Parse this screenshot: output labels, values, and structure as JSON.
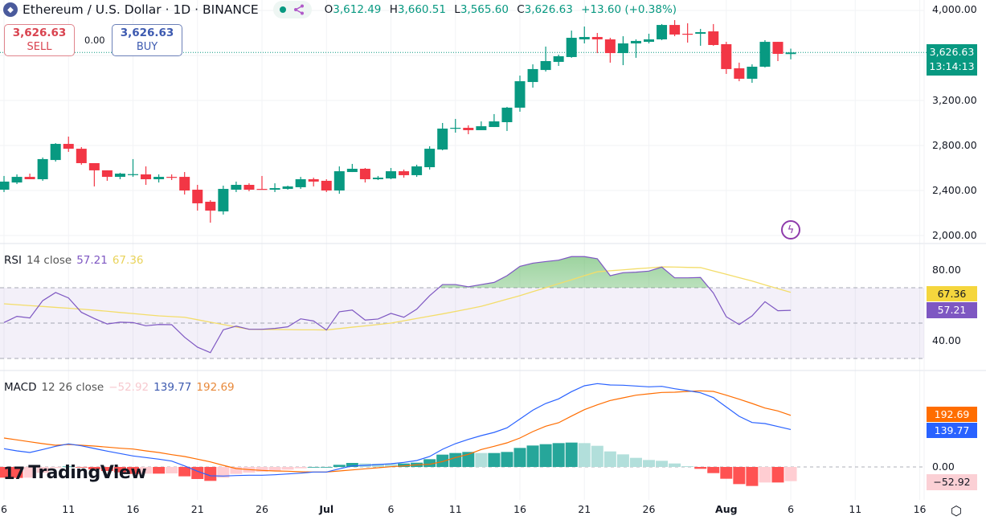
{
  "header": {
    "title": "Ethereum / U.S. Dollar · 1D · BINANCE",
    "logo_icon": "ethereum-icon",
    "status_icon": "market-open-dot",
    "share_icon": "share-icon",
    "ohlc": {
      "o_label": "O",
      "o": "3,612.49",
      "h_label": "H",
      "h": "3,660.51",
      "l_label": "L",
      "l": "3,565.60",
      "c_label": "C",
      "c": "3,626.63",
      "change": "+13.60 (+0.38%)"
    }
  },
  "trade": {
    "sell_price": "3,626.63",
    "sell_label": "SELL",
    "spread": "0.00",
    "buy_price": "3,626.63",
    "buy_label": "BUY"
  },
  "price_axis": {
    "ticks": [
      "4,000.00",
      "3,200.00",
      "2,800.00",
      "2,400.00",
      "2,000.00"
    ],
    "last_price": "3,626.63",
    "countdown": "13:14:13"
  },
  "rsi": {
    "title": "RSI",
    "params": "14 close",
    "value": "57.21",
    "ma_value": "67.36",
    "axis": [
      "80.00",
      "40.00"
    ]
  },
  "macd": {
    "title": "MACD",
    "params": "12 26 close",
    "hist_value": "−52.92",
    "macd_value": "139.77",
    "signal_value": "192.69",
    "axis_zero": "0.00"
  },
  "time_axis": {
    "ticks": [
      {
        "label": "6",
        "date": "Jun 6"
      },
      {
        "label": "11",
        "date": "Jun 11"
      },
      {
        "label": "16",
        "date": "Jun 16"
      },
      {
        "label": "21",
        "date": "Jun 21"
      },
      {
        "label": "26",
        "date": "Jun 26"
      },
      {
        "label": "Jul",
        "date": "Jul 1"
      },
      {
        "label": "6",
        "date": "Jul 6"
      },
      {
        "label": "11",
        "date": "Jul 11"
      },
      {
        "label": "16",
        "date": "Jul 16"
      },
      {
        "label": "21",
        "date": "Jul 21"
      },
      {
        "label": "26",
        "date": "Jul 26"
      },
      {
        "label": "Aug",
        "date": "Aug 1"
      },
      {
        "label": "6",
        "date": "Aug 6"
      },
      {
        "label": "11",
        "date": "Aug 11"
      },
      {
        "label": "16",
        "date": "Aug 16"
      }
    ]
  },
  "branding": {
    "name": "TradingView"
  },
  "icons": {
    "alert": "lightning-icon",
    "settings": "settings-icon"
  },
  "colors": {
    "up": "#089981",
    "down": "#f23645",
    "rsi": "#7e57c2",
    "rsi_ma": "#f3dd6a",
    "macd": "#2962ff",
    "signal": "#ff6d00",
    "hist_up_strong": "#26a69a",
    "hist_up_weak": "#b2dfdb",
    "hist_down_strong": "#ff5252",
    "hist_down_weak": "#ffcdd2"
  },
  "chart_data": {
    "type": "candlestick",
    "price_range": [
      2000,
      4000
    ],
    "candles": [
      [
        "Jun 6",
        2407,
        2529,
        2386,
        2479
      ],
      [
        "Jun 7",
        2471,
        2543,
        2457,
        2521
      ],
      [
        "Jun 8",
        2521,
        2550,
        2500,
        2500
      ],
      [
        "Jun 9",
        2500,
        2693,
        2486,
        2679
      ],
      [
        "Jun 10",
        2671,
        2821,
        2657,
        2814
      ],
      [
        "Jun 11",
        2814,
        2879,
        2743,
        2771
      ],
      [
        "Jun 12",
        2771,
        2786,
        2629,
        2643
      ],
      [
        "Jun 13",
        2643,
        2643,
        2436,
        2579
      ],
      [
        "Jun 14",
        2579,
        2579,
        2486,
        2521
      ],
      [
        "Jun 15",
        2521,
        2557,
        2500,
        2550
      ],
      [
        "Jun 16",
        2543,
        2679,
        2521,
        2545
      ],
      [
        "Jun 17",
        2543,
        2614,
        2450,
        2500
      ],
      [
        "Jun 18",
        2500,
        2543,
        2471,
        2521
      ],
      [
        "Jun 19",
        2521,
        2543,
        2493,
        2514
      ],
      [
        "Jun 20",
        2521,
        2564,
        2364,
        2400
      ],
      [
        "Jun 21",
        2407,
        2450,
        2221,
        2286
      ],
      [
        "Jun 22",
        2300,
        2314,
        2114,
        2221
      ],
      [
        "Jun 23",
        2214,
        2443,
        2186,
        2414
      ],
      [
        "Jun 24",
        2407,
        2479,
        2386,
        2450
      ],
      [
        "Jun 25",
        2450,
        2464,
        2393,
        2407
      ],
      [
        "Jun 26",
        2414,
        2529,
        2407,
        2407
      ],
      [
        "Jun 27",
        2407,
        2464,
        2386,
        2421
      ],
      [
        "Jun 28",
        2414,
        2443,
        2407,
        2436
      ],
      [
        "Jun 29",
        2429,
        2521,
        2414,
        2500
      ],
      [
        "Jun 30",
        2500,
        2514,
        2436,
        2479
      ],
      [
        "Jul 1",
        2486,
        2500,
        2386,
        2400
      ],
      [
        "Jul 2",
        2400,
        2614,
        2371,
        2571
      ],
      [
        "Jul 3",
        2564,
        2636,
        2564,
        2593
      ],
      [
        "Jul 4",
        2593,
        2600,
        2471,
        2500
      ],
      [
        "Jul 5",
        2500,
        2529,
        2493,
        2514
      ],
      [
        "Jul 6",
        2507,
        2600,
        2500,
        2571
      ],
      [
        "Jul 7",
        2571,
        2586,
        2514,
        2536
      ],
      [
        "Jul 8",
        2536,
        2629,
        2521,
        2614
      ],
      [
        "Jul 9",
        2607,
        2793,
        2586,
        2771
      ],
      [
        "Jul 10",
        2764,
        3000,
        2757,
        2950
      ],
      [
        "Jul 11",
        2950,
        3036,
        2914,
        2957
      ],
      [
        "Jul 12",
        2957,
        2979,
        2900,
        2936
      ],
      [
        "Jul 13",
        2936,
        3014,
        2936,
        2971
      ],
      [
        "Jul 14",
        2964,
        3079,
        2964,
        3014
      ],
      [
        "Jul 15",
        3007,
        3143,
        2929,
        3136
      ],
      [
        "Jul 16",
        3136,
        3421,
        3100,
        3371
      ],
      [
        "Jul 17",
        3364,
        3521,
        3314,
        3479
      ],
      [
        "Jul 18",
        3471,
        3679,
        3457,
        3550
      ],
      [
        "Jul 19",
        3543,
        3607,
        3507,
        3593
      ],
      [
        "Jul 20",
        3586,
        3821,
        3579,
        3757
      ],
      [
        "Jul 21",
        3743,
        3857,
        3707,
        3764
      ],
      [
        "Jul 22",
        3764,
        3800,
        3621,
        3743
      ],
      [
        "Jul 23",
        3743,
        3757,
        3536,
        3621
      ],
      [
        "Jul 24",
        3621,
        3771,
        3514,
        3707
      ],
      [
        "Jul 25",
        3707,
        3743,
        3579,
        3729
      ],
      [
        "Jul 26",
        3721,
        3793,
        3707,
        3743
      ],
      [
        "Jul 27",
        3743,
        3879,
        3736,
        3871
      ],
      [
        "Jul 28",
        3871,
        3914,
        3771,
        3786
      ],
      [
        "Jul 29",
        3793,
        3886,
        3714,
        3790
      ],
      [
        "Jul 30",
        3793,
        3836,
        3686,
        3807
      ],
      [
        "Jul 31",
        3814,
        3879,
        3686,
        3693
      ],
      [
        "Aug 1",
        3700,
        3721,
        3436,
        3479
      ],
      [
        "Aug 2",
        3486,
        3536,
        3371,
        3393
      ],
      [
        "Aug 3",
        3393,
        3521,
        3357,
        3500
      ],
      [
        "Aug 4",
        3500,
        3736,
        3493,
        3721
      ],
      [
        "Aug 5",
        3721,
        3721,
        3550,
        3614
      ],
      [
        "Aug 6",
        3612.49,
        3660.51,
        3565.6,
        3626.63
      ]
    ],
    "rsi": [
      50.3,
      53.8,
      52.9,
      62.7,
      67.3,
      64.2,
      56.1,
      52.6,
      49.5,
      50.5,
      50.3,
      48.5,
      49.2,
      49.1,
      42.0,
      36.4,
      33.3,
      46.2,
      48.3,
      46.5,
      46.5,
      47.0,
      47.9,
      52.4,
      51.2,
      46.1,
      56.4,
      57.4,
      51.7,
      52.3,
      55.5,
      53.3,
      57.9,
      65.5,
      71.8,
      71.8,
      70.5,
      71.8,
      73.0,
      76.8,
      82.1,
      83.9,
      84.8,
      85.6,
      87.6,
      87.6,
      86.4,
      76.8,
      78.5,
      78.8,
      79.4,
      81.7,
      75.6,
      75.6,
      75.8,
      67.0,
      53.6,
      49.2,
      54.1,
      62.1,
      57.0,
      57.21
    ],
    "rsi_ma": [
      60.9,
      60.4,
      59.9,
      59.4,
      58.9,
      58.4,
      57.9,
      57.3,
      56.7,
      56.0,
      55.4,
      54.7,
      54.1,
      53.7,
      53.3,
      51.9,
      50.5,
      49.2,
      47.8,
      46.5,
      46.4,
      46.4,
      46.3,
      46.2,
      46.2,
      46.1,
      46.9,
      47.7,
      48.4,
      49.2,
      50.0,
      51.3,
      52.6,
      53.9,
      55.2,
      56.6,
      58.0,
      59.5,
      61.5,
      63.5,
      65.5,
      67.8,
      70.0,
      72.3,
      74.5,
      76.8,
      79.0,
      79.6,
      80.1,
      80.7,
      81.2,
      81.8,
      81.7,
      81.5,
      81.4,
      79.5,
      77.6,
      75.7,
      73.8,
      71.6,
      69.5,
      67.36
    ],
    "rsi_bands": {
      "upper": 70,
      "middle": 50,
      "lower": 30
    },
    "macd": [
      68,
      60,
      54,
      65,
      77,
      86,
      79,
      69,
      59,
      50,
      41,
      35,
      29,
      22,
      4,
      -16,
      -33,
      -34,
      -32,
      -31,
      -31,
      -29,
      -26,
      -23,
      -19,
      -19,
      -7,
      4,
      6,
      9,
      12,
      17,
      24,
      39,
      66,
      87,
      103,
      117,
      129,
      146,
      179,
      212,
      237,
      254,
      281,
      303,
      311,
      306,
      305,
      302,
      299,
      301,
      292,
      285,
      277,
      259,
      224,
      189,
      166,
      162,
      151,
      139.77
    ],
    "signal": [
      108,
      101,
      94,
      87,
      81,
      84,
      81,
      78,
      74,
      70,
      67,
      60,
      54,
      46,
      39,
      29,
      19,
      6,
      -6,
      -10,
      -13,
      -15,
      -16,
      -18,
      -19,
      -19,
      -15,
      -11,
      -7,
      -3,
      1,
      4,
      8,
      10,
      20,
      35,
      47,
      65,
      77,
      90,
      108,
      132,
      152,
      165,
      190,
      214,
      232,
      248,
      258,
      268,
      273,
      278,
      279,
      282,
      284,
      282,
      268,
      253,
      237,
      220,
      209,
      192.69
    ],
    "histogram": [
      -40,
      -41,
      -40,
      -22,
      -4,
      2,
      -2,
      -9,
      -15,
      -20,
      -26,
      -25,
      -25,
      -24,
      -35,
      -45,
      -52,
      -40,
      -26,
      -21,
      -18,
      -14,
      -10,
      -5,
      0,
      0,
      8,
      15,
      13,
      12,
      11,
      13,
      16,
      29,
      46,
      52,
      56,
      52,
      52,
      56,
      71,
      80,
      85,
      89,
      91,
      89,
      79,
      58,
      47,
      34,
      26,
      23,
      13,
      3,
      -7,
      -23,
      -44,
      -64,
      -71,
      -58,
      -58,
      -52.92
    ]
  }
}
